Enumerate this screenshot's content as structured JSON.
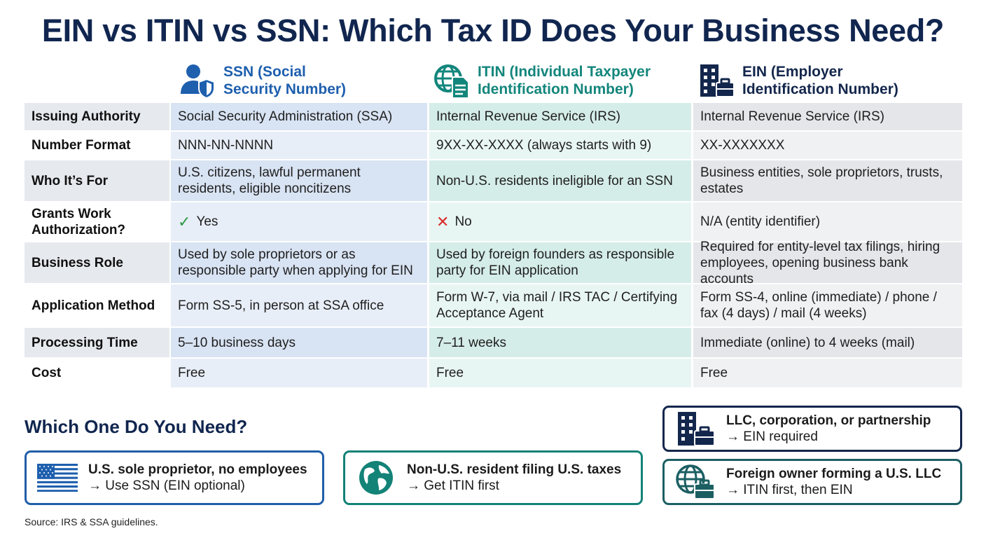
{
  "title": "EIN vs ITIN vs SSN: Which Tax ID Does Your Business Need?",
  "columns": [
    {
      "line1": "SSN (Social",
      "line2": "Security Number)",
      "icon": "person-shield-icon",
      "color": "#1e5fae"
    },
    {
      "line1": "ITIN (Individual Taxpayer",
      "line2": "Identification Number)",
      "icon": "globe-document-icon",
      "color": "#13867c"
    },
    {
      "line1": "EIN (Employer",
      "line2": "Identification Number)",
      "icon": "building-briefcase-icon",
      "color": "#13264c"
    }
  ],
  "rows": [
    {
      "label": "Issuing Authority",
      "ssn": "Social Security Administration (SSA)",
      "itin": "Internal Revenue Service (IRS)",
      "ein": "Internal Revenue Service (IRS)"
    },
    {
      "label": "Number Format",
      "ssn": "NNN-NN-NNNN",
      "itin": "9XX-XX-XXXX (always starts with 9)",
      "ein": "XX-XXXXXXX"
    },
    {
      "label": "Who It’s For",
      "ssn": "U.S. citizens, lawful permanent residents, eligible noncitizens",
      "itin": "Non-U.S. residents ineligible for an SSN",
      "ein": "Business entities, sole proprietors, trusts, estates"
    },
    {
      "label": "Grants Work Authorization?",
      "ssn": "Yes",
      "itin": "No",
      "ein": "N/A (entity identifier)"
    },
    {
      "label": "Business Role",
      "ssn": "Used by sole proprietors or as responsible party when applying for EIN",
      "itin": "Used by foreign founders as responsible party for EIN application",
      "ein": "Required for entity-level tax filings, hiring employees, opening business bank accounts"
    },
    {
      "label": "Application Method",
      "ssn": "Form SS-5, in person at SSA office",
      "itin": "Form W-7, via mail / IRS TAC / Certifying Acceptance Agent",
      "ein": "Form SS-4, online (immediate) / phone / fax (4 days) / mail (4 weeks)"
    },
    {
      "label": "Processing Time",
      "ssn": "5–10 business days",
      "itin": "7–11 weeks",
      "ein": "Immediate (online) to 4 weeks (mail)"
    },
    {
      "label": "Cost",
      "ssn": "Free",
      "itin": "Free",
      "ein": "Free"
    }
  ],
  "marks": {
    "yes": "✓",
    "no": "✕"
  },
  "need": {
    "title": "Which One Do You Need?",
    "cards": [
      {
        "title": "U.S. sole proprietor, no employees",
        "action": "→ Use SSN (EIN optional)",
        "icon": "us-flag-icon"
      },
      {
        "title": "Non-U.S. resident filing U.S. taxes",
        "action": "→ Get ITIN first",
        "icon": "globe-icon"
      },
      {
        "title": "LLC, corporation, or partnership",
        "action": "→ EIN required",
        "icon": "building-briefcase-icon"
      },
      {
        "title": "Foreign owner forming a U.S. LLC",
        "action": "→ ITIN first, then EIN",
        "icon": "globe-briefcase-icon"
      }
    ]
  },
  "source": "Source: IRS & SSA guidelines."
}
